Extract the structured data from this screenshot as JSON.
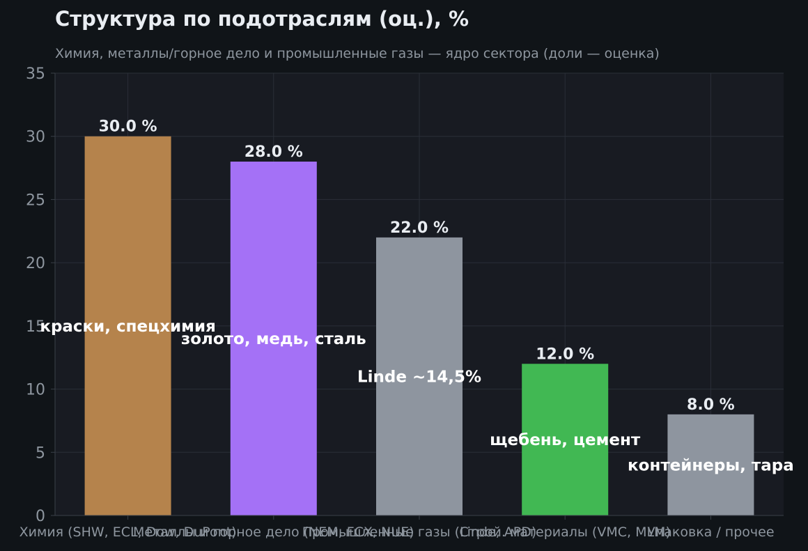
{
  "chart_data": {
    "type": "bar",
    "title": "Структура по подотраслям (оц.), %",
    "subtitle": "Химия, металлы/горное дело и промышленные газы — ядро сектора (доли — оценка)",
    "xlabel": "",
    "ylabel": "",
    "ylim": [
      0,
      35
    ],
    "yticks": [
      0,
      5,
      10,
      15,
      20,
      25,
      30,
      35
    ],
    "grid": true,
    "categories": [
      "Химия (SHW, ECL, Dow, DuPont)",
      "Металлы и горное дело (NEM, FCX, NUE)",
      "Промышленные газы (Linde, APD)",
      "Строй. материалы (VMC, MLM)",
      "Упаковка / прочее"
    ],
    "values": [
      30.0,
      28.0,
      22.0,
      12.0,
      8.0
    ],
    "value_labels": [
      "30.0 %",
      "28.0 %",
      "22.0 %",
      "12.0 %",
      "8.0 %"
    ],
    "annotations": [
      {
        "text": "краски, спецхимия",
        "y": 15.0
      },
      {
        "text": "золото, медь, сталь",
        "y": 14.0
      },
      {
        "text": "Linde ~14,5%",
        "y": 11.0
      },
      {
        "text": "щебень, цемент",
        "y": 6.0
      },
      {
        "text": "контейнеры, тара",
        "y": 4.0
      }
    ],
    "colors": [
      "#b5834c",
      "#a471f6",
      "#8e959f",
      "#41b853",
      "#8e959f"
    ],
    "style": {
      "plot_bg": "#181b22",
      "grid_color": "#2a2f38",
      "axis_color": "#3a4048",
      "tick_label_color": "#8e969f",
      "value_label_color": "#e9edf2",
      "annotation_color": "#ffffff"
    }
  }
}
